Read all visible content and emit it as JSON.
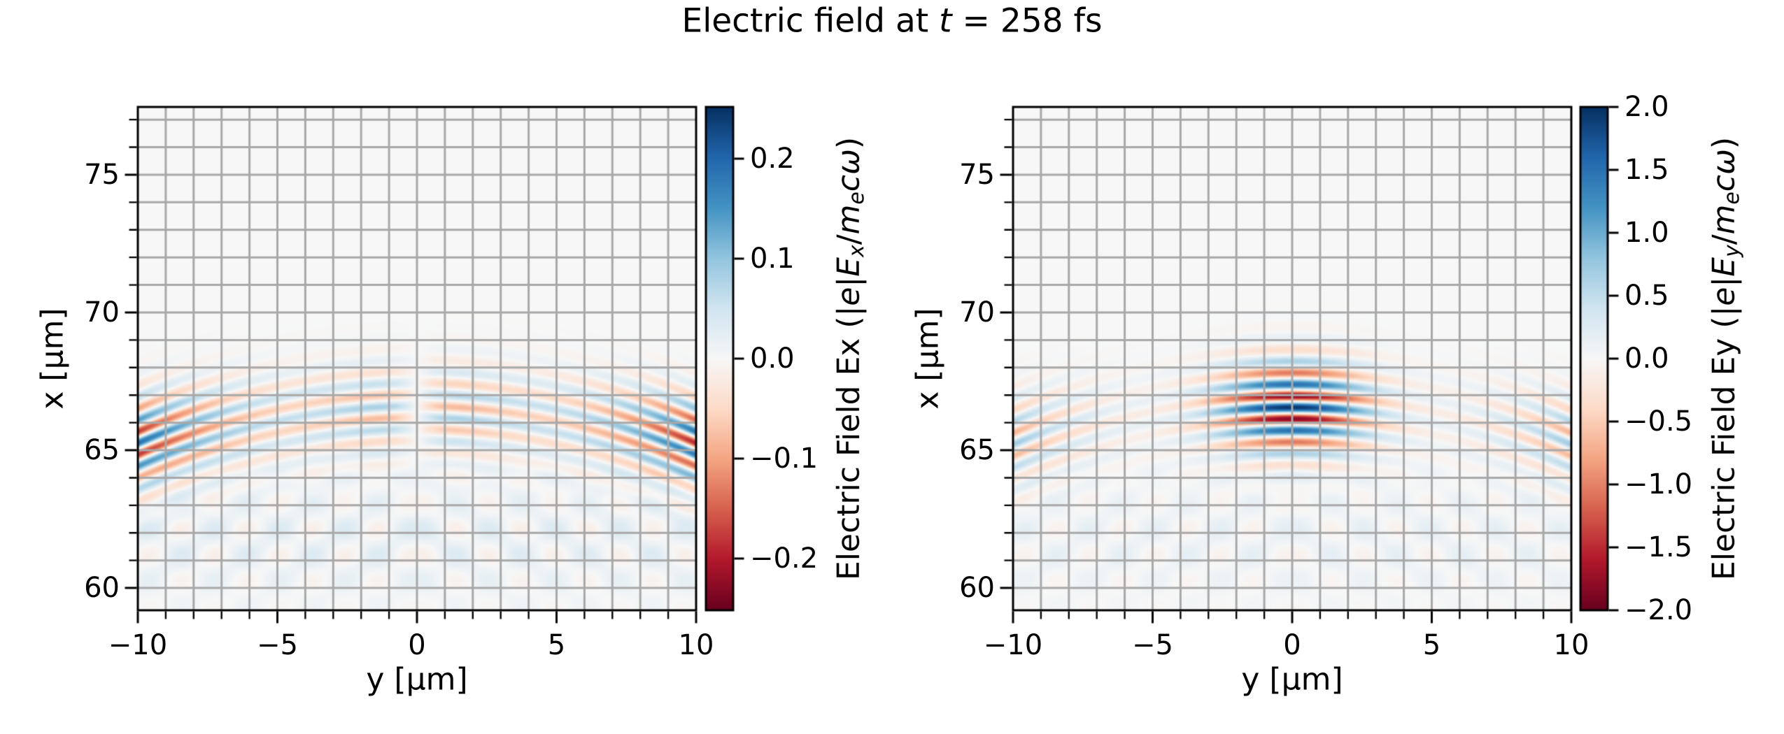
{
  "title": {
    "text": "Electric field at t = 258 fs",
    "parts": [
      {
        "t": "Electric field at ",
        "s": "n"
      },
      {
        "t": "t",
        "s": "i"
      },
      {
        "t": " = 258 fs",
        "s": "n"
      }
    ]
  },
  "colormap": {
    "name": "RdBu",
    "stops": [
      "#67001f",
      "#b2182b",
      "#d6604d",
      "#f4a582",
      "#fddbc7",
      "#f7f7f7",
      "#d1e5f0",
      "#92c5de",
      "#4393c3",
      "#2166ac",
      "#053061"
    ]
  },
  "style": {
    "background": "#ffffff",
    "grid_color": "#a8a8a8",
    "spine_color": "#000000",
    "tick_color": "#000000",
    "text_color": "#000000"
  },
  "chart_data": [
    {
      "type": "heatmap",
      "id": "Ex",
      "xlabel": "y [μm]",
      "ylabel": "x [μm]",
      "xlim": [
        -10,
        10
      ],
      "ylim": [
        59.19,
        77.46
      ],
      "xticks": {
        "values": [
          -10,
          -5,
          0,
          5,
          10
        ],
        "labels": [
          "−10",
          "−5",
          "0",
          "5",
          "10"
        ]
      },
      "yticks": {
        "values": [
          75,
          70,
          65,
          60
        ],
        "labels": [
          "75",
          "70",
          "65",
          "60"
        ]
      },
      "minor_tick_step": 1,
      "grid": true,
      "colorbar": {
        "vmin": -0.2517,
        "vmax": 0.2517,
        "tick_values": [
          0.2,
          0.1,
          0.0,
          -0.1,
          -0.2
        ],
        "tick_labels": [
          "0.2",
          "0.1",
          "0.0",
          "−0.1",
          "−0.2"
        ],
        "label_text": "Electric Field Ex (|e|Ex/mecω)",
        "label_parts": [
          {
            "t": "Electric Field Ex (|",
            "s": "n"
          },
          {
            "t": "e",
            "s": "i"
          },
          {
            "t": "|",
            "s": "n"
          },
          {
            "t": "E",
            "s": "i"
          },
          {
            "t": "x",
            "s": "is"
          },
          {
            "t": "/",
            "s": "n"
          },
          {
            "t": "m",
            "s": "i"
          },
          {
            "t": "e",
            "s": "is"
          },
          {
            "t": "c",
            "s": "i"
          },
          {
            "t": "ω",
            "s": "i"
          },
          {
            "t": ")",
            "s": "n"
          }
        ]
      },
      "field_model": {
        "kind": "focused_laser_pulse",
        "wavelength_um": 0.85,
        "x_center": 66.45,
        "x_sigma": 1.6,
        "phase": 2.0,
        "phase_curvature": 0.022,
        "envelope_curvature": 0.012,
        "main_amplitude": 0.095,
        "main_y_sigma": 4.0,
        "odd_in_y": true,
        "odd_scale": 0.8,
        "edge_amplitude": 0.19,
        "edge_exponent": 2.2,
        "ripple_amplitude": 0.016,
        "ripple_tint": 0.011,
        "ripple_x_center": 61.8,
        "ripple_x_sigma": 2.2,
        "ripple_wavelength": 1.5
      }
    },
    {
      "type": "heatmap",
      "id": "Ey",
      "xlabel": "y [μm]",
      "ylabel": "x [μm]",
      "xlim": [
        -10,
        10
      ],
      "ylim": [
        59.19,
        77.46
      ],
      "xticks": {
        "values": [
          -10,
          -5,
          0,
          5,
          10
        ],
        "labels": [
          "−10",
          "−5",
          "0",
          "5",
          "10"
        ]
      },
      "yticks": {
        "values": [
          75,
          70,
          65,
          60
        ],
        "labels": [
          "75",
          "70",
          "65",
          "60"
        ]
      },
      "minor_tick_step": 1,
      "grid": true,
      "colorbar": {
        "vmin": -2.0,
        "vmax": 2.0,
        "tick_values": [
          2.0,
          1.5,
          1.0,
          0.5,
          0.0,
          -0.5,
          -1.0,
          -1.5,
          -2.0
        ],
        "tick_labels": [
          "2.0",
          "1.5",
          "1.0",
          "0.5",
          "0.0",
          "−0.5",
          "−1.0",
          "−1.5",
          "−2.0"
        ],
        "label_text": "Electric Field Ey (|e|Ey/mecω)",
        "label_parts": [
          {
            "t": "Electric Field Ey (|",
            "s": "n"
          },
          {
            "t": "e",
            "s": "i"
          },
          {
            "t": "|",
            "s": "n"
          },
          {
            "t": "E",
            "s": "i"
          },
          {
            "t": "y",
            "s": "is"
          },
          {
            "t": "/",
            "s": "n"
          },
          {
            "t": "m",
            "s": "i"
          },
          {
            "t": "e",
            "s": "is"
          },
          {
            "t": "c",
            "s": "i"
          },
          {
            "t": "ω",
            "s": "i"
          },
          {
            "t": ")",
            "s": "n"
          }
        ]
      },
      "field_model": {
        "kind": "focused_laser_pulse",
        "wavelength_um": 0.85,
        "x_center": 66.55,
        "x_sigma": 1.6,
        "phase": 0.0,
        "phase_curvature": 0.022,
        "envelope_curvature": 0.012,
        "main_amplitude": 1.95,
        "main_y_sigma": 2.75,
        "odd_in_y": false,
        "odd_scale": 1.0,
        "edge_amplitude": 0.72,
        "edge_exponent": 3.0,
        "ripple_amplitude": 0.09,
        "ripple_tint": 0.06,
        "ripple_x_center": 61.8,
        "ripple_x_sigma": 2.2,
        "ripple_wavelength": 1.5
      }
    }
  ]
}
